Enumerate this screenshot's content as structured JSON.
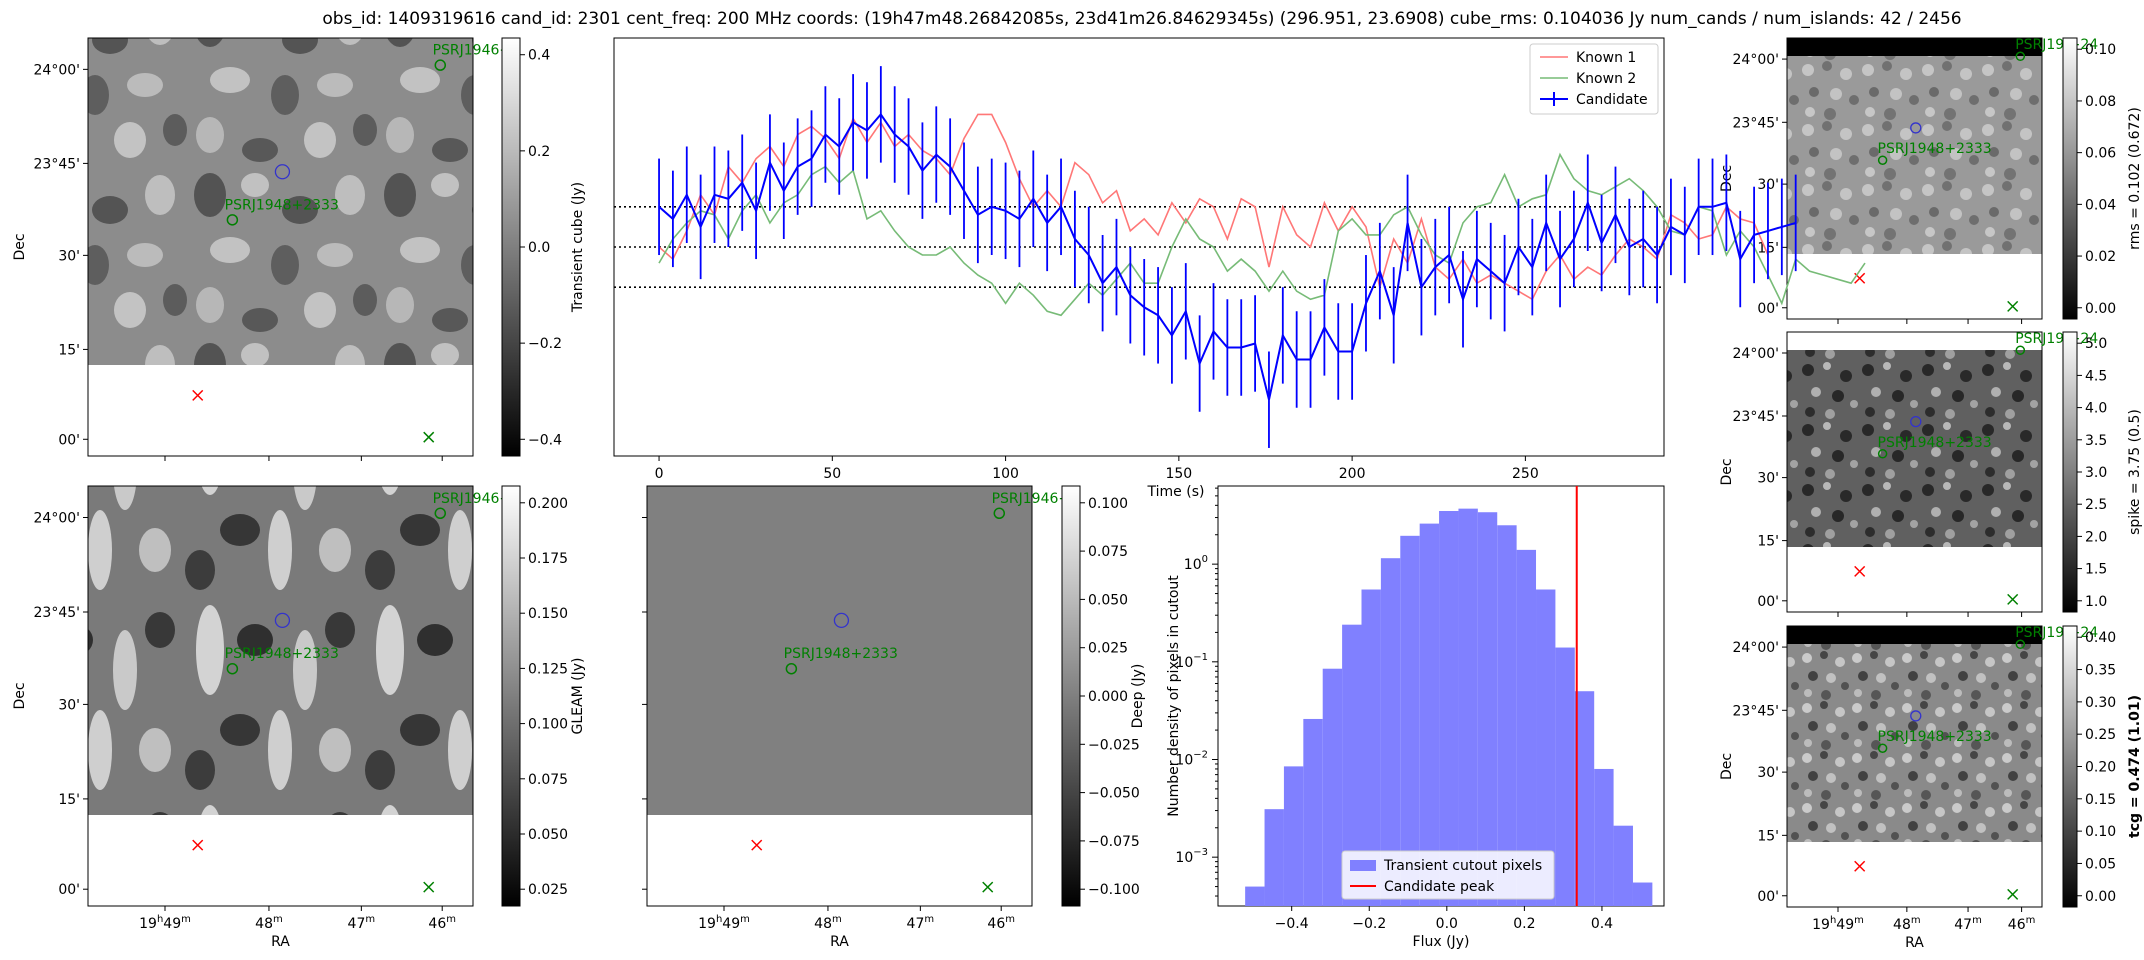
{
  "figure_title": "obs_id: 1409319616 cand_id: 2301 cent_freq: 200 MHz coords: (19h47m48.26842085s, 23d41m26.84629345s) (296.951, 23.6908) cube_rms: 0.104036 Jy num_cands / num_islands: 42 / 2456",
  "colors": {
    "red": "#ff0000",
    "green": "#008000",
    "blue": "#0000ff",
    "hist": "#8080ff",
    "known1": "#ff7777",
    "known2": "#77bb77"
  },
  "sky": {
    "ra_ticks": [
      {
        "h": "19",
        "m": "49"
      },
      {
        "h": "",
        "m": "48"
      },
      {
        "h": "",
        "m": "47"
      },
      {
        "h": "",
        "m": "46"
      }
    ],
    "dec_ticks": [
      "00'",
      "15'",
      "30'",
      "23°45'",
      "24°00'"
    ],
    "ra_label": "RA",
    "dec_label": "Dec",
    "source_main": "PSRJ1948+2333",
    "source_top": "PSRJ1946+",
    "source_top_right": "PSRJ19    +24"
  },
  "panels": {
    "transient": {
      "colorbar_label": "Transient cube (Jy)",
      "ticks": [
        "0.4",
        "0.2",
        "0.0",
        "−0.2",
        "−0.4"
      ]
    },
    "gleam": {
      "colorbar_label": "GLEAM (Jy)",
      "ticks": [
        "0.200",
        "0.175",
        "0.150",
        "0.125",
        "0.100",
        "0.075",
        "0.050",
        "0.025"
      ]
    },
    "deep": {
      "colorbar_label": "Deep (Jy)",
      "ticks": [
        "0.100",
        "0.075",
        "0.050",
        "0.025",
        "0.000",
        "−0.025",
        "−0.050",
        "−0.075",
        "−0.100"
      ]
    },
    "rms": {
      "colorbar_label": "rms = 0.102 (0.672)",
      "ticks": [
        "0.10",
        "0.08",
        "0.06",
        "0.04",
        "0.02",
        "0.00"
      ]
    },
    "spike": {
      "colorbar_label": "spike = 3.75 (0.5)",
      "ticks": [
        "5.0",
        "4.5",
        "4.0",
        "3.5",
        "3.0",
        "2.5",
        "2.0",
        "1.5",
        "1.0"
      ]
    },
    "tcg": {
      "colorbar_label": "tcg = 0.474 (1.01)",
      "ticks": [
        "0.40",
        "0.35",
        "0.30",
        "0.25",
        "0.20",
        "0.15",
        "0.10",
        "0.05",
        "0.00"
      ]
    }
  },
  "chart_data": [
    {
      "type": "line",
      "title": "",
      "xlabel": "Time (s)",
      "ylabel": "",
      "xlim": [
        -13,
        290
      ],
      "ylim": [
        -0.52,
        0.52
      ],
      "x_ticks": [
        0,
        50,
        100,
        150,
        200,
        250
      ],
      "hlines": [
        0.1,
        0.0,
        -0.1
      ],
      "x_start": 0,
      "x_step": 4,
      "legend": {
        "position": "top-right",
        "entries": [
          "Known 1",
          "Known 2",
          "Candidate"
        ]
      },
      "series": [
        {
          "name": "Known 1",
          "values": [
            0.0,
            -0.03,
            0.04,
            0.13,
            0.08,
            0.2,
            0.16,
            0.22,
            0.25,
            0.2,
            0.28,
            0.3,
            0.27,
            0.22,
            0.32,
            0.26,
            0.31,
            0.25,
            0.28,
            0.24,
            0.22,
            0.18,
            0.27,
            0.33,
            0.33,
            0.26,
            0.17,
            0.1,
            0.14,
            0.1,
            0.21,
            0.18,
            0.11,
            0.14,
            0.04,
            0.07,
            0.03,
            0.11,
            0.06,
            0.12,
            0.1,
            0.02,
            0.12,
            0.1,
            -0.05,
            0.1,
            0.03,
            0.0,
            0.11,
            0.04,
            0.1,
            0.05,
            -0.1,
            0.02,
            -0.04,
            0.07,
            -0.05,
            -0.08,
            -0.03,
            -0.09,
            -0.07,
            -0.09,
            -0.11,
            -0.13,
            -0.06,
            -0.02,
            -0.08,
            -0.05,
            -0.07,
            -0.02,
            0.02,
            0.0,
            -0.03,
            0.08,
            0.06,
            0.02,
            0.03,
            0.1,
            0.07,
            0.06,
            -0.02
          ]
        },
        {
          "name": "Known 2",
          "values": [
            -0.04,
            0.02,
            0.06,
            0.09,
            0.08,
            0.02,
            0.09,
            0.13,
            0.06,
            0.11,
            0.13,
            0.18,
            0.2,
            0.16,
            0.19,
            0.07,
            0.09,
            0.04,
            0.0,
            -0.02,
            -0.02,
            0.0,
            -0.04,
            -0.07,
            -0.09,
            -0.14,
            -0.09,
            -0.12,
            -0.16,
            -0.17,
            -0.13,
            -0.09,
            -0.12,
            -0.08,
            -0.04,
            -0.09,
            -0.09,
            0.0,
            0.07,
            0.02,
            0.0,
            -0.06,
            -0.03,
            -0.06,
            -0.11,
            -0.06,
            -0.11,
            -0.13,
            -0.12,
            0.04,
            0.07,
            0.03,
            0.03,
            0.08,
            0.1,
            0.03,
            -0.02,
            -0.04,
            0.06,
            0.1,
            0.11,
            0.18,
            0.1,
            0.12,
            0.13,
            0.23,
            0.17,
            0.14,
            0.13,
            0.15,
            0.17,
            0.14,
            0.1,
            0.04,
            0.03,
            0.1,
            0.09,
            -0.02,
            0.04,
            0.0,
            -0.07,
            -0.14,
            -0.03,
            -0.06,
            -0.07,
            -0.08,
            -0.09,
            -0.04
          ]
        },
        {
          "name": "Candidate",
          "values": [
            0.1,
            0.07,
            0.13,
            0.05,
            0.13,
            0.12,
            0.16,
            0.09,
            0.21,
            0.14,
            0.2,
            0.22,
            0.28,
            0.25,
            0.31,
            0.29,
            0.33,
            0.28,
            0.25,
            0.19,
            0.23,
            0.2,
            0.14,
            0.08,
            0.1,
            0.09,
            0.07,
            0.12,
            0.06,
            0.1,
            0.02,
            -0.02,
            -0.09,
            -0.05,
            -0.12,
            -0.15,
            -0.17,
            -0.22,
            -0.16,
            -0.29,
            -0.21,
            -0.25,
            -0.25,
            -0.24,
            -0.38,
            -0.22,
            -0.28,
            -0.28,
            -0.2,
            -0.26,
            -0.26,
            -0.14,
            -0.06,
            -0.17,
            0.06,
            -0.1,
            -0.05,
            -0.02,
            -0.13,
            -0.03,
            -0.06,
            -0.09,
            0.0,
            -0.05,
            0.06,
            -0.03,
            0.02,
            0.11,
            0.01,
            0.08,
            0.0,
            0.02,
            -0.02,
            0.05,
            0.03,
            0.1,
            0.1,
            0.11,
            -0.03,
            0.03,
            0.04,
            0.05,
            0.06
          ],
          "errors": [
            0.12,
            0.12,
            0.12,
            0.13,
            0.12,
            0.12,
            0.12,
            0.12,
            0.12,
            0.12,
            0.12,
            0.12,
            0.12,
            0.12,
            0.12,
            0.12,
            0.12,
            0.12,
            0.12,
            0.12,
            0.12,
            0.12,
            0.12,
            0.12,
            0.12,
            0.12,
            0.12,
            0.12,
            0.12,
            0.12,
            0.12,
            0.12,
            0.12,
            0.12,
            0.12,
            0.12,
            0.12,
            0.12,
            0.12,
            0.12,
            0.12,
            0.12,
            0.12,
            0.12,
            0.12,
            0.12,
            0.12,
            0.12,
            0.12,
            0.12,
            0.12,
            0.12,
            0.12,
            0.12,
            0.12,
            0.12,
            0.12,
            0.12,
            0.12,
            0.12,
            0.12,
            0.12,
            0.12,
            0.12,
            0.12,
            0.12,
            0.12,
            0.12,
            0.12,
            0.12,
            0.12,
            0.12,
            0.12,
            0.12,
            0.12,
            0.12,
            0.12,
            0.12,
            0.12,
            0.12,
            0.12,
            0.12,
            0.12
          ]
        }
      ]
    },
    {
      "type": "bar",
      "title": "",
      "xlabel": "Flux (Jy)",
      "ylabel": "Number density of pixels in cutout",
      "yscale": "log",
      "xlim": [
        -0.59,
        0.56
      ],
      "ylim_log10": [
        -3.5,
        0.8
      ],
      "x_ticks": [
        -0.4,
        -0.2,
        0.0,
        0.2,
        0.4
      ],
      "x_tick_labels": [
        "−0.4",
        "−0.2",
        "0.0",
        "0.2",
        "0.4"
      ],
      "y_ticks_exp": [
        0,
        -1,
        -2,
        -3
      ],
      "bin_edges": [
        -0.52,
        -0.47,
        -0.42,
        -0.37,
        -0.32,
        -0.27,
        -0.22,
        -0.17,
        -0.12,
        -0.07,
        -0.02,
        0.03,
        0.08,
        0.13,
        0.18,
        0.23,
        0.28,
        0.33,
        0.38,
        0.43,
        0.48
      ],
      "values": [
        0.0005,
        0.0031,
        0.0085,
        0.026,
        0.085,
        0.24,
        0.55,
        1.15,
        1.95,
        2.6,
        3.5,
        3.7,
        3.4,
        2.5,
        1.4,
        0.55,
        0.14,
        0.05,
        0.008,
        0.0021,
        0.00055
      ],
      "vline": 0.335,
      "legend": {
        "position": "lower-center",
        "entries": [
          "Transient cutout pixels",
          "Candidate peak"
        ]
      }
    }
  ]
}
